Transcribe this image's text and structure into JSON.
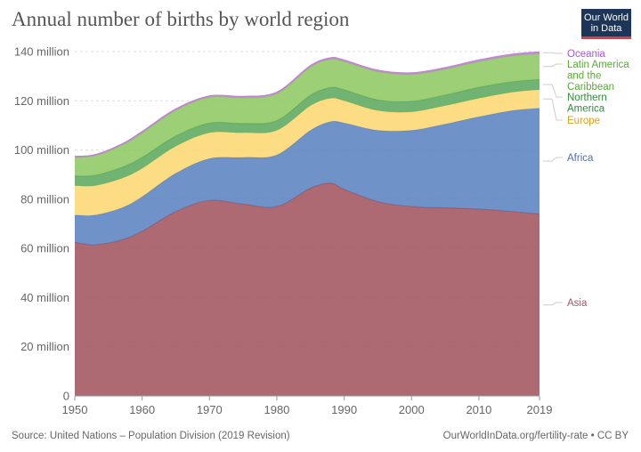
{
  "header": {
    "title": "Annual number of births by world region",
    "logo_line1": "Our World",
    "logo_line2": "in Data"
  },
  "footer": {
    "source": "Source: United Nations – Population Division (2019 Revision)",
    "link": "OurWorldInData.org/fertility-rate • CC BY"
  },
  "chart_data": {
    "type": "area",
    "stacked": true,
    "xlim": [
      1950,
      2019
    ],
    "ylim": [
      0,
      140
    ],
    "x_ticks": [
      1950,
      1960,
      1970,
      1980,
      1990,
      2000,
      2010,
      2019
    ],
    "x_tick_labels": [
      "1950",
      "1960",
      "1970",
      "1980",
      "1990",
      "2000",
      "2010",
      "2019"
    ],
    "y_ticks": [
      0,
      20,
      40,
      60,
      80,
      100,
      120,
      140
    ],
    "y_tick_labels": [
      "0",
      "20 million",
      "40 million",
      "60 million",
      "80 million",
      "100 million",
      "120 million",
      "140 million"
    ],
    "grid": "horizontal",
    "legend": "right",
    "x": [
      1950,
      1953,
      1957,
      1960,
      1965,
      1970,
      1975,
      1980,
      1985,
      1988,
      1990,
      1995,
      2000,
      2005,
      2010,
      2015,
      2019
    ],
    "series": [
      {
        "name": "Asia",
        "color": "#a2555f",
        "values": [
          62.5,
          61.5,
          63.5,
          67,
          75,
          79.5,
          78,
          77,
          84.5,
          86.5,
          84,
          79,
          77,
          76.5,
          76,
          75,
          74
        ]
      },
      {
        "name": "Africa",
        "color": "#5b84c2",
        "values": [
          11,
          12,
          13,
          14,
          15.5,
          17,
          19,
          21,
          23.5,
          25,
          27,
          29,
          31,
          34,
          37.5,
          41,
          43
        ]
      },
      {
        "name": "Europe",
        "color": "#fdd873",
        "values": [
          12,
          12,
          12,
          11.5,
          11,
          10.5,
          10,
          10,
          10,
          9.5,
          9,
          8,
          7.5,
          7.5,
          7.5,
          7.5,
          7.5
        ]
      },
      {
        "name": "Northern America",
        "color": "#5ca85e",
        "values": [
          4,
          4.2,
          4.5,
          4.5,
          4.2,
          4,
          3.8,
          4,
          4.3,
          4.4,
          4.5,
          4.4,
          4.3,
          4.4,
          4.5,
          4.3,
          4.2
        ]
      },
      {
        "name": "Latin America and the Caribbean",
        "color": "#8ec863",
        "values": [
          7.5,
          8,
          9,
          10,
          10.5,
          10.5,
          10.5,
          11,
          11.5,
          11.5,
          11.5,
          11.5,
          11,
          10.5,
          10.5,
          10.5,
          10.5
        ]
      },
      {
        "name": "Oceania",
        "color": "#c37fd8",
        "values": [
          0.4,
          0.4,
          0.45,
          0.5,
          0.5,
          0.5,
          0.5,
          0.5,
          0.55,
          0.55,
          0.55,
          0.55,
          0.55,
          0.6,
          0.65,
          0.65,
          0.65
        ]
      }
    ]
  }
}
